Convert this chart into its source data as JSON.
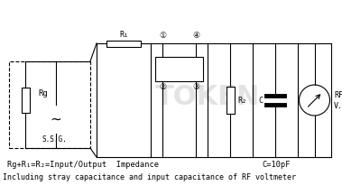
{
  "bg_color": "#ffffff",
  "line_color": "#000000",
  "footnote1": "Rg+R₁=R₂=Input/Output  Impedance",
  "footnote2": "C=10pF",
  "footnote3": "Including stray capacitance and input capacitance of RF voltmeter",
  "label_Rg": "Rg",
  "label_R1": "R₁",
  "label_R2": "R₂",
  "label_C": "C",
  "label_SSG": "S.S.G.",
  "label_RF": "RF",
  "label_VM": "V.M",
  "node1": "①",
  "node2": "②",
  "node3": "③",
  "node4": "④",
  "watermark": "TOKEN"
}
